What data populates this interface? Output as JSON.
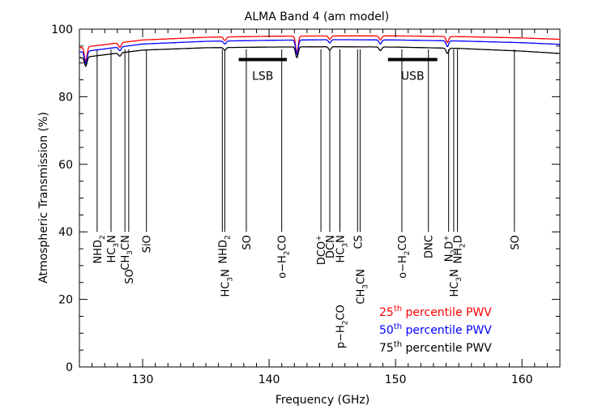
{
  "chart_data": {
    "type": "line",
    "title": "ALMA Band 4 (am model)",
    "xlabel": "Frequency (GHz)",
    "ylabel": "Atmospheric Transmission (%)",
    "xlim": [
      125,
      163
    ],
    "ylim": [
      0,
      100
    ],
    "xticks": [
      130,
      140,
      150,
      160
    ],
    "yticks": [
      0,
      20,
      40,
      60,
      80,
      100
    ],
    "grid": false,
    "legend_placement": "bottom-right",
    "series": [
      {
        "name_parts": [
          "25",
          "th",
          " percentile PWV"
        ],
        "color": "#ff0000",
        "x": [
          125,
          130,
          135,
          140,
          145,
          150,
          155,
          160,
          163
        ],
        "y": [
          94.5,
          96.8,
          97.6,
          97.9,
          98.0,
          98.0,
          97.8,
          97.4,
          97.0
        ],
        "dips": [
          [
            125.5,
            90.5
          ],
          [
            128.2,
            94.6
          ],
          [
            136.5,
            96.6
          ],
          [
            142.2,
            93.0
          ],
          [
            144.8,
            97.0
          ],
          [
            148.8,
            96.8
          ],
          [
            154.1,
            96.0
          ]
        ]
      },
      {
        "name_parts": [
          "50",
          "th",
          " percentile PWV"
        ],
        "color": "#0000ff",
        "x": [
          125,
          130,
          135,
          140,
          145,
          150,
          155,
          160,
          163
        ],
        "y": [
          93.2,
          95.6,
          96.4,
          96.7,
          96.9,
          96.8,
          96.5,
          96.0,
          95.5
        ],
        "dips": [
          [
            125.5,
            89.8
          ],
          [
            128.2,
            93.6
          ],
          [
            136.5,
            95.6
          ],
          [
            142.2,
            92.3
          ],
          [
            144.8,
            95.9
          ],
          [
            148.8,
            95.6
          ],
          [
            154.1,
            94.8
          ]
        ]
      },
      {
        "name_parts": [
          "75",
          "th",
          " percentile PWV"
        ],
        "color": "#000000",
        "x": [
          125,
          130,
          135,
          140,
          145,
          150,
          155,
          160,
          163
        ],
        "y": [
          91.5,
          93.8,
          94.5,
          94.7,
          94.8,
          94.7,
          94.3,
          93.5,
          92.8
        ],
        "dips": [
          [
            125.5,
            89.0
          ],
          [
            128.2,
            92.0
          ],
          [
            136.5,
            93.8
          ],
          [
            142.2,
            91.5
          ],
          [
            144.8,
            93.8
          ],
          [
            148.8,
            93.6
          ],
          [
            154.1,
            92.8
          ]
        ]
      }
    ],
    "bands": [
      {
        "label": "LSB",
        "x0": 137.6,
        "x1": 141.4,
        "y": 91
      },
      {
        "label": "USB",
        "x0": 149.4,
        "x1": 153.3,
        "y": 91
      }
    ],
    "lines": [
      {
        "x": 126.4,
        "top": 40,
        "label": "NHD",
        "sub": "2",
        "pos": "top"
      },
      {
        "x": 127.5,
        "top": 40,
        "label": "HC",
        "sub": "3",
        "tail": "N",
        "pos": "top"
      },
      {
        "x": 128.6,
        "top": 40,
        "label": "CH",
        "sub": "3",
        "tail": "CN",
        "pos": "top"
      },
      {
        "x": 128.9,
        "top": 40,
        "label": "SO",
        "pos": "mid"
      },
      {
        "x": 130.3,
        "top": 40,
        "label": "SiO",
        "pos": "top"
      },
      {
        "x": 136.3,
        "top": 40,
        "label": "NHD",
        "sub": "2",
        "pos": "top"
      },
      {
        "x": 136.5,
        "top": 40,
        "label": "HC",
        "sub": "3",
        "tail": "N",
        "pos": "mid"
      },
      {
        "x": 138.2,
        "top": 40,
        "label": "SO",
        "pos": "top"
      },
      {
        "x": 141.0,
        "top": 40,
        "label": "o−H",
        "sub": "2",
        "tail": "CO",
        "pos": "top"
      },
      {
        "x": 144.1,
        "top": 40,
        "label": "DCO",
        "sup": "+",
        "pos": "top"
      },
      {
        "x": 144.8,
        "top": 40,
        "label": "DCN",
        "pos": "top"
      },
      {
        "x": 145.6,
        "top": 40,
        "label": "HC",
        "sub": "3",
        "tail": "N",
        "pos": "top"
      },
      {
        "x": 145.6,
        "top": 40,
        "label": "p−H",
        "sub": "2",
        "tail": "CO",
        "pos": "low"
      },
      {
        "x": 147.0,
        "top": 40,
        "label": "CS",
        "pos": "top"
      },
      {
        "x": 147.2,
        "top": 40,
        "label": "CH",
        "sub": "3",
        "tail": "CN",
        "pos": "mid"
      },
      {
        "x": 150.5,
        "top": 40,
        "label": "o−H",
        "sub": "2",
        "tail": "CO",
        "pos": "top"
      },
      {
        "x": 152.6,
        "top": 40,
        "label": "DNC",
        "pos": "top"
      },
      {
        "x": 154.2,
        "top": 40,
        "label": "N",
        "sub": "2",
        "tail": "D",
        "sup2": "+",
        "pos": "top"
      },
      {
        "x": 154.6,
        "top": 40,
        "label": "HC",
        "sub": "3",
        "tail": "N",
        "pos": "mid"
      },
      {
        "x": 154.9,
        "top": 40,
        "label": "NH",
        "sub": "2",
        "tail": "D",
        "pos": "top"
      },
      {
        "x": 159.4,
        "top": 40,
        "label": "SO",
        "pos": "top"
      }
    ]
  }
}
